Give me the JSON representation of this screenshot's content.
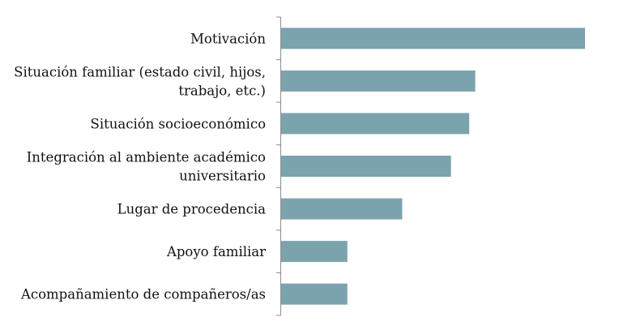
{
  "chart_data": {
    "type": "bar",
    "orientation": "horizontal",
    "categories": [
      [
        "Motivación"
      ],
      [
        "Situación familiar (estado civil, hijos,",
        "trabajo, etc.)"
      ],
      [
        "Situación socioeconómico"
      ],
      [
        "Integración al ambiente académico",
        "universitario"
      ],
      [
        "Lugar de procedencia"
      ],
      [
        "Apoyo familiar"
      ],
      [
        "Acompañamiento de compañeros/as"
      ]
    ],
    "values": [
      100,
      64,
      62,
      56,
      40,
      22,
      22
    ],
    "xlim": [
      0,
      100
    ],
    "grid": false,
    "bar_color": "#7BA3AE",
    "axis_color": "#8C8C8C"
  }
}
